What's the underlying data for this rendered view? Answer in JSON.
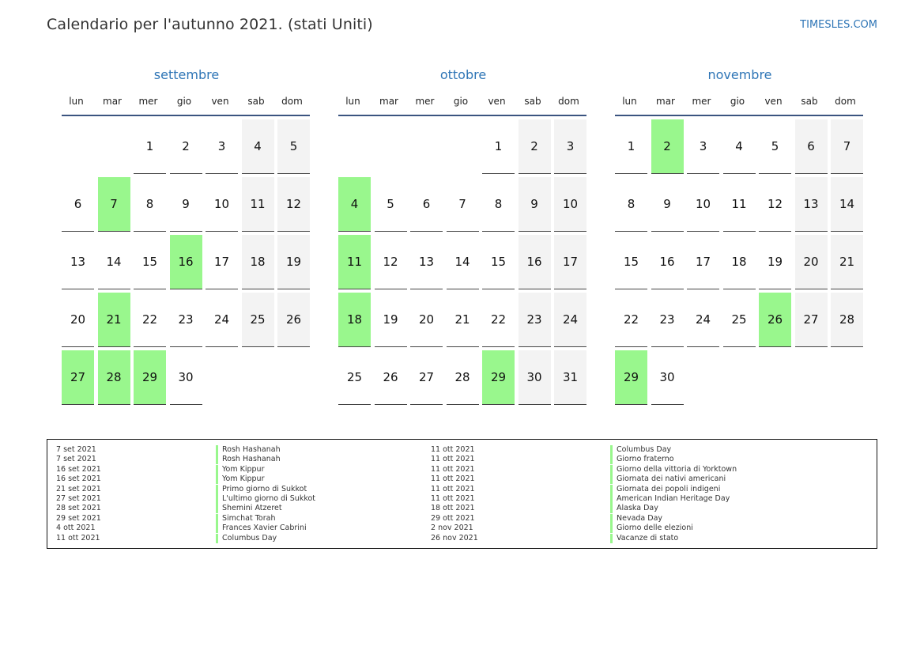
{
  "header": {
    "title": "Calendario per l'autunno 2021. (stati Uniti)",
    "site": "TIMESLES.COM"
  },
  "colors": {
    "holiday": "#99f78d",
    "weekend": "#f3f3f3",
    "accent": "#2e75b6"
  },
  "weekdays": [
    "lun",
    "mar",
    "mer",
    "gio",
    "ven",
    "sab",
    "dom"
  ],
  "months": [
    {
      "name": "settembre",
      "offset": 2,
      "days": 30,
      "holidays": [
        7,
        16,
        21,
        27,
        28,
        29
      ]
    },
    {
      "name": "ottobre",
      "offset": 4,
      "days": 31,
      "holidays": [
        4,
        11,
        18,
        29
      ]
    },
    {
      "name": "novembre",
      "offset": 0,
      "days": 30,
      "holidays": [
        2,
        26,
        29
      ]
    }
  ],
  "legend": {
    "left": [
      {
        "date": "7 set 2021",
        "name": "Rosh Hashanah"
      },
      {
        "date": "7 set 2021",
        "name": "Rosh Hashanah"
      },
      {
        "date": "16 set 2021",
        "name": "Yom Kippur"
      },
      {
        "date": "16 set 2021",
        "name": "Yom Kippur"
      },
      {
        "date": "21 set 2021",
        "name": "Primo giorno di Sukkot"
      },
      {
        "date": "27 set 2021",
        "name": "L'ultimo giorno di Sukkot"
      },
      {
        "date": "28 set 2021",
        "name": "Shemini Atzeret"
      },
      {
        "date": "29 set 2021",
        "name": "Simchat Torah"
      },
      {
        "date": "4 ott 2021",
        "name": "Frances Xavier Cabrini"
      },
      {
        "date": "11 ott 2021",
        "name": "Columbus Day"
      }
    ],
    "right": [
      {
        "date": "11 ott 2021",
        "name": "Columbus Day"
      },
      {
        "date": "11 ott 2021",
        "name": "Giorno fraterno"
      },
      {
        "date": "11 ott 2021",
        "name": "Giorno della vittoria di Yorktown"
      },
      {
        "date": "11 ott 2021",
        "name": "Giornata dei nativi americani"
      },
      {
        "date": "11 ott 2021",
        "name": "Giornata dei popoli indigeni"
      },
      {
        "date": "11 ott 2021",
        "name": "American Indian Heritage Day"
      },
      {
        "date": "18 ott 2021",
        "name": "Alaska Day"
      },
      {
        "date": "29 ott 2021",
        "name": "Nevada Day"
      },
      {
        "date": "2 nov 2021",
        "name": "Giorno delle elezioni"
      },
      {
        "date": "26 nov 2021",
        "name": "Vacanze di stato"
      }
    ]
  }
}
